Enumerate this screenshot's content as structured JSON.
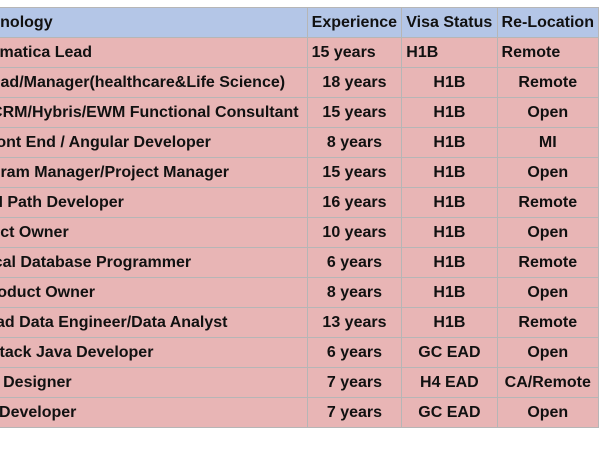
{
  "table": {
    "headers": {
      "technology": "Technology",
      "experience": "Experience",
      "visa": "Visa Status",
      "relocation": "Re-Location"
    },
    "rows": [
      {
        "tech": "Informatica Lead",
        "exp": "15 years",
        "visa": "H1B",
        "reloc": "Remote"
      },
      {
        "tech": "QA Lead/Manager(healthcare&Life Science)",
        "exp": "18 years",
        "visa": "H1B",
        "reloc": "Remote"
      },
      {
        "tech": "SAP CRM/Hybris/EWM Functional Consultant",
        "exp": "15 years",
        "visa": "H1B",
        "reloc": "Open"
      },
      {
        "tech": "Sr Front End / Angular Developer",
        "exp": "8 years",
        "visa": "H1B",
        "reloc": "MI"
      },
      {
        "tech": "Program Manager/Project Manager",
        "exp": "15 years",
        "visa": "H1B",
        "reloc": "Open"
      },
      {
        "tech": "Sr. UI Path Developer",
        "exp": "16 years",
        "visa": "H1B",
        "reloc": "Remote"
      },
      {
        "tech": "Product Owner",
        "exp": "10 years",
        "visa": "H1B",
        "reloc": "Open"
      },
      {
        "tech": "Clinical Database Programmer",
        "exp": "6 years",
        "visa": "H1B",
        "reloc": "Remote"
      },
      {
        "tech": "Sr Product Owner",
        "exp": "8 years",
        "visa": "H1B",
        "reloc": "Open"
      },
      {
        "tech": "Sr Lead Data Engineer/Data Analyst",
        "exp": "13 years",
        "visa": "H1B",
        "reloc": "Remote"
      },
      {
        "tech": "Full Stack Java Developer",
        "exp": "6 years",
        "visa": "GC EAD",
        "reloc": "Open"
      },
      {
        "tech": "UI/UX Designer",
        "exp": "7 years",
        "visa": "H4 EAD",
        "reloc": "CA/Remote"
      },
      {
        "tech": "Java Developer",
        "exp": "7 years",
        "visa": "GC EAD",
        "reloc": "Open"
      }
    ]
  },
  "colors": {
    "header_bg": "#b4c6e7",
    "row_bg": "#e8b5b5",
    "border": "#b6b6b6"
  }
}
